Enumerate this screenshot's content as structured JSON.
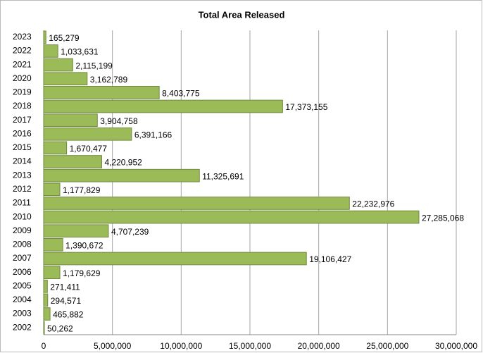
{
  "chart_data": {
    "type": "bar",
    "orientation": "horizontal",
    "title": "Total Area Released",
    "categories": [
      "2023",
      "2022",
      "2021",
      "2020",
      "2019",
      "2018",
      "2017",
      "2016",
      "2015",
      "2014",
      "2013",
      "2012",
      "2011",
      "2010",
      "2009",
      "2008",
      "2007",
      "2006",
      "2005",
      "2004",
      "2003",
      "2002"
    ],
    "values": [
      165279,
      1033631,
      2115199,
      3162789,
      8403775,
      17373155,
      3904758,
      6391166,
      1670477,
      4220952,
      11325691,
      1177829,
      22232976,
      27285068,
      4707239,
      1390672,
      19106427,
      1179629,
      271411,
      294571,
      465882,
      50262
    ],
    "value_labels": [
      "165,279",
      "1,033,631",
      "2,115,199",
      "3,162,789",
      "8,403,775",
      "17,373,155",
      "3,904,758",
      "6,391,166",
      "1,670,477",
      "4,220,952",
      "11,325,691",
      "1,177,829",
      "22,232,976",
      "27,285,068",
      "4,707,239",
      "1,390,672",
      "19,106,427",
      "1,179,629",
      "271,411",
      "294,571",
      "465,882",
      "50,262"
    ],
    "color": "#9bbb59",
    "xlim": [
      0,
      30000000
    ],
    "xticks": [
      0,
      {
        "value": 5000000,
        "label": "5,000,000"
      },
      {
        "value": 10000000,
        "label": "10,000,000"
      },
      {
        "value": 15000000,
        "label": "15,000,000"
      },
      {
        "value": 20000000,
        "label": "20,000,000"
      },
      {
        "value": 25000000,
        "label": "25,000,000"
      },
      {
        "value": 30000000,
        "label": "30,000,000"
      }
    ],
    "grid": true
  }
}
